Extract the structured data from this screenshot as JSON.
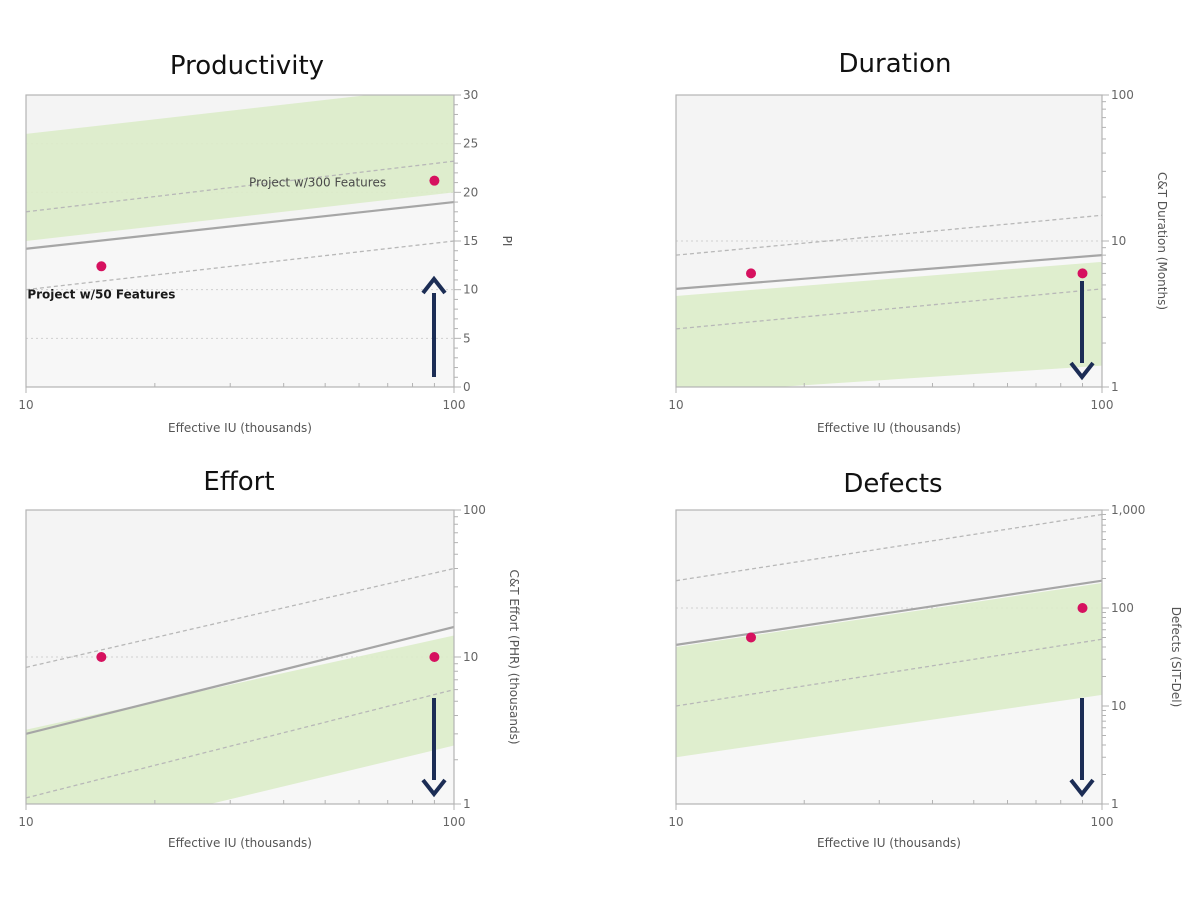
{
  "colors": {
    "band": "#dcecc9",
    "upper_region": "#f4f4f4",
    "lower_region": "#f7f7f7",
    "frame": "#b3b3b3",
    "trend": "#a6a6a6",
    "dashed": "#b8b8b8",
    "grid": "#cfcfcf",
    "point": "#d6115f",
    "arrow": "#1c2d55"
  },
  "chart_data": [
    {
      "type": "scatter",
      "title": "Productivity",
      "xlabel": "Effective IU (thousands)",
      "ylabel": "PI",
      "x_scale": "log",
      "y_scale": "linear",
      "xlim": [
        10,
        100
      ],
      "ylim": [
        0,
        30
      ],
      "x_ticks": [
        "10",
        "100"
      ],
      "y_ticks": [
        {
          "label": "0",
          "value": 0
        },
        {
          "label": "5",
          "value": 5
        },
        {
          "label": "10",
          "value": 10
        },
        {
          "label": "15",
          "value": 15
        },
        {
          "label": "20",
          "value": 20
        },
        {
          "label": "25",
          "value": 25
        },
        {
          "label": "30",
          "value": 30
        }
      ],
      "grid_values": [
        5,
        10,
        20,
        25
      ],
      "trend_line": {
        "x": [
          10,
          100
        ],
        "y": [
          14.2,
          19.0
        ]
      },
      "upper_line": {
        "x": [
          10,
          100
        ],
        "y": [
          18.0,
          23.2
        ]
      },
      "lower_line": {
        "x": [
          10,
          100
        ],
        "y": [
          10.0,
          15.0
        ]
      },
      "band": {
        "x": [
          10,
          100
        ],
        "low": [
          15.0,
          20.0
        ],
        "high": [
          26.0,
          31.0
        ]
      },
      "points": [
        {
          "name": "Project w/50 Features",
          "x": 15,
          "y": 12.4
        },
        {
          "name": "Project w/300 Features",
          "x": 90,
          "y": 21.2
        }
      ],
      "annotations": [
        {
          "text": "Project w/50 Features",
          "x": 15,
          "y": 9.5,
          "anchor": "middle",
          "bold": true
        },
        {
          "text": "Project w/300 Features",
          "x": 48,
          "y": 21.0,
          "anchor": "middle",
          "bold": false
        }
      ],
      "arrow": {
        "direction": "up"
      }
    },
    {
      "type": "scatter",
      "title": "Duration",
      "xlabel": "Effective IU (thousands)",
      "ylabel": "C&T Duration (Months)",
      "x_scale": "log",
      "y_scale": "log",
      "xlim": [
        10,
        100
      ],
      "ylim": [
        1,
        100
      ],
      "x_ticks": [
        "10",
        "100"
      ],
      "y_ticks": [
        {
          "label": "1",
          "value": 1
        },
        {
          "label": "10",
          "value": 10
        },
        {
          "label": "100",
          "value": 100
        }
      ],
      "grid_values": [
        10
      ],
      "trend_line": {
        "x": [
          10,
          100
        ],
        "y": [
          4.7,
          8.0
        ]
      },
      "upper_line": {
        "x": [
          10,
          100
        ],
        "y": [
          8.0,
          15.0
        ]
      },
      "lower_line": {
        "x": [
          10,
          100
        ],
        "y": [
          2.5,
          4.7
        ]
      },
      "band": {
        "x": [
          10,
          100
        ],
        "low": [
          0.9,
          1.4
        ],
        "high": [
          4.2,
          7.2
        ]
      },
      "points": [
        {
          "name": "Project w/50 Features",
          "x": 15,
          "y": 6.0
        },
        {
          "name": "Project w/300 Features",
          "x": 90,
          "y": 6.0
        }
      ],
      "annotations": [],
      "arrow": {
        "direction": "down"
      }
    },
    {
      "type": "scatter",
      "title": "Effort",
      "xlabel": "Effective IU (thousands)",
      "ylabel": "C&T Effort (PHR) (thousands)",
      "x_scale": "log",
      "y_scale": "log",
      "xlim": [
        10,
        100
      ],
      "ylim": [
        1,
        100
      ],
      "x_ticks": [
        "10",
        "100"
      ],
      "y_ticks": [
        {
          "label": "1",
          "value": 1
        },
        {
          "label": "10",
          "value": 10
        },
        {
          "label": "100",
          "value": 100
        }
      ],
      "grid_values": [
        10
      ],
      "trend_line": {
        "x": [
          10,
          100
        ],
        "y": [
          3.0,
          16.0
        ]
      },
      "upper_line": {
        "x": [
          10,
          100
        ],
        "y": [
          8.5,
          40.0
        ]
      },
      "lower_line": {
        "x": [
          10,
          100
        ],
        "y": [
          1.1,
          6.0
        ]
      },
      "band": {
        "x": [
          10,
          100
        ],
        "low": [
          0.5,
          2.5
        ],
        "high": [
          3.2,
          14.0
        ]
      },
      "points": [
        {
          "name": "Project w/50 Features",
          "x": 15,
          "y": 10.0
        },
        {
          "name": "Project w/300 Features",
          "x": 90,
          "y": 10.0
        }
      ],
      "annotations": [],
      "arrow": {
        "direction": "down"
      }
    },
    {
      "type": "scatter",
      "title": "Defects",
      "xlabel": "Effective IU (thousands)",
      "ylabel": "Defects (SIT-Del)",
      "x_scale": "log",
      "y_scale": "log",
      "xlim": [
        10,
        100
      ],
      "ylim": [
        1,
        1000
      ],
      "x_ticks": [
        "10",
        "100"
      ],
      "y_ticks": [
        {
          "label": "1",
          "value": 1
        },
        {
          "label": "10",
          "value": 10
        },
        {
          "label": "100",
          "value": 100
        },
        {
          "label": "1,000",
          "value": 1000
        }
      ],
      "grid_values": [
        100
      ],
      "trend_line": {
        "x": [
          10,
          100
        ],
        "y": [
          42,
          190
        ]
      },
      "upper_line": {
        "x": [
          10,
          100
        ],
        "y": [
          190,
          900
        ]
      },
      "lower_line": {
        "x": [
          10,
          100
        ],
        "y": [
          10,
          48
        ]
      },
      "band": {
        "x": [
          10,
          100
        ],
        "low": [
          3.0,
          13.0
        ],
        "high": [
          40,
          180
        ]
      },
      "points": [
        {
          "name": "Project w/50 Features",
          "x": 15,
          "y": 50
        },
        {
          "name": "Project w/300 Features",
          "x": 90,
          "y": 100
        }
      ],
      "annotations": [],
      "arrow": {
        "direction": "down"
      }
    }
  ]
}
